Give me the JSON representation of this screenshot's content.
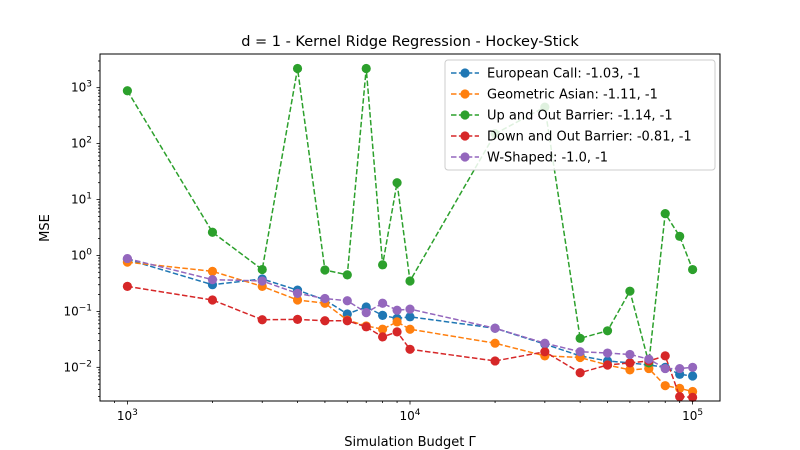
{
  "chart_data": {
    "type": "line",
    "title": "d = 1 - Kernel Ridge Regression - Hockey-Stick",
    "xlabel": "Simulation Budget Γ",
    "ylabel": "MSE",
    "xscale": "log",
    "yscale": "log",
    "xlim": [
      800,
      125000
    ],
    "ylim": [
      0.0025,
      4000
    ],
    "xticks": [
      {
        "value": 1000,
        "base": "10",
        "exp": "3"
      },
      {
        "value": 10000,
        "base": "10",
        "exp": "4"
      },
      {
        "value": 100000,
        "base": "10",
        "exp": "5"
      }
    ],
    "yticks": [
      {
        "value": 0.01,
        "base": "10",
        "exp": "−2"
      },
      {
        "value": 0.1,
        "base": "10",
        "exp": "−1"
      },
      {
        "value": 1,
        "base": "10",
        "exp": "0"
      },
      {
        "value": 10,
        "base": "10",
        "exp": "1"
      },
      {
        "value": 100,
        "base": "10",
        "exp": "2"
      },
      {
        "value": 1000,
        "base": "10",
        "exp": "3"
      }
    ],
    "grid": false,
    "legend_position": "top-right",
    "x": [
      1000,
      2000,
      3000,
      4000,
      5000,
      6000,
      7000,
      8000,
      9000,
      10000,
      20000,
      30000,
      40000,
      50000,
      60000,
      70000,
      80000,
      90000,
      100000
    ],
    "series": [
      {
        "name": "European Call: -1.03, -1",
        "color": "#1f77b4",
        "values": [
          0.85,
          0.3,
          0.38,
          0.24,
          0.16,
          0.09,
          0.12,
          0.085,
          0.075,
          0.08,
          0.05,
          0.026,
          0.016,
          0.013,
          0.012,
          0.011,
          0.01,
          0.0075,
          0.007
        ]
      },
      {
        "name": "Geometric Asian: -1.11, -1",
        "color": "#ff7f0e",
        "values": [
          0.76,
          0.52,
          0.28,
          0.16,
          0.14,
          0.07,
          0.055,
          0.048,
          0.065,
          0.048,
          0.027,
          0.016,
          0.015,
          0.011,
          0.009,
          0.0095,
          0.0047,
          0.0042,
          0.0037
        ]
      },
      {
        "name": "Up and Out Barrier: -1.14, -1",
        "color": "#2ca02c",
        "values": [
          880,
          2.6,
          0.56,
          2200,
          0.55,
          0.45,
          2200,
          0.68,
          20,
          0.35,
          150,
          450,
          0.033,
          0.045,
          0.23,
          0.012,
          5.6,
          2.2,
          0.56
        ]
      },
      {
        "name": "Down and Out Barrier: -0.81, -1",
        "color": "#d62728",
        "values": [
          0.28,
          0.16,
          0.071,
          0.072,
          0.068,
          0.068,
          0.053,
          0.035,
          0.043,
          0.021,
          0.013,
          0.019,
          0.008,
          0.011,
          0.012,
          0.013,
          0.016,
          0.003,
          0.0029
        ]
      },
      {
        "name": "W-Shaped: -1.0, -1",
        "color": "#9467bd",
        "values": [
          0.88,
          0.37,
          0.35,
          0.21,
          0.17,
          0.155,
          0.095,
          0.14,
          0.105,
          0.11,
          0.05,
          0.027,
          0.019,
          0.018,
          0.017,
          0.014,
          0.0095,
          0.0095,
          0.01
        ]
      }
    ]
  }
}
